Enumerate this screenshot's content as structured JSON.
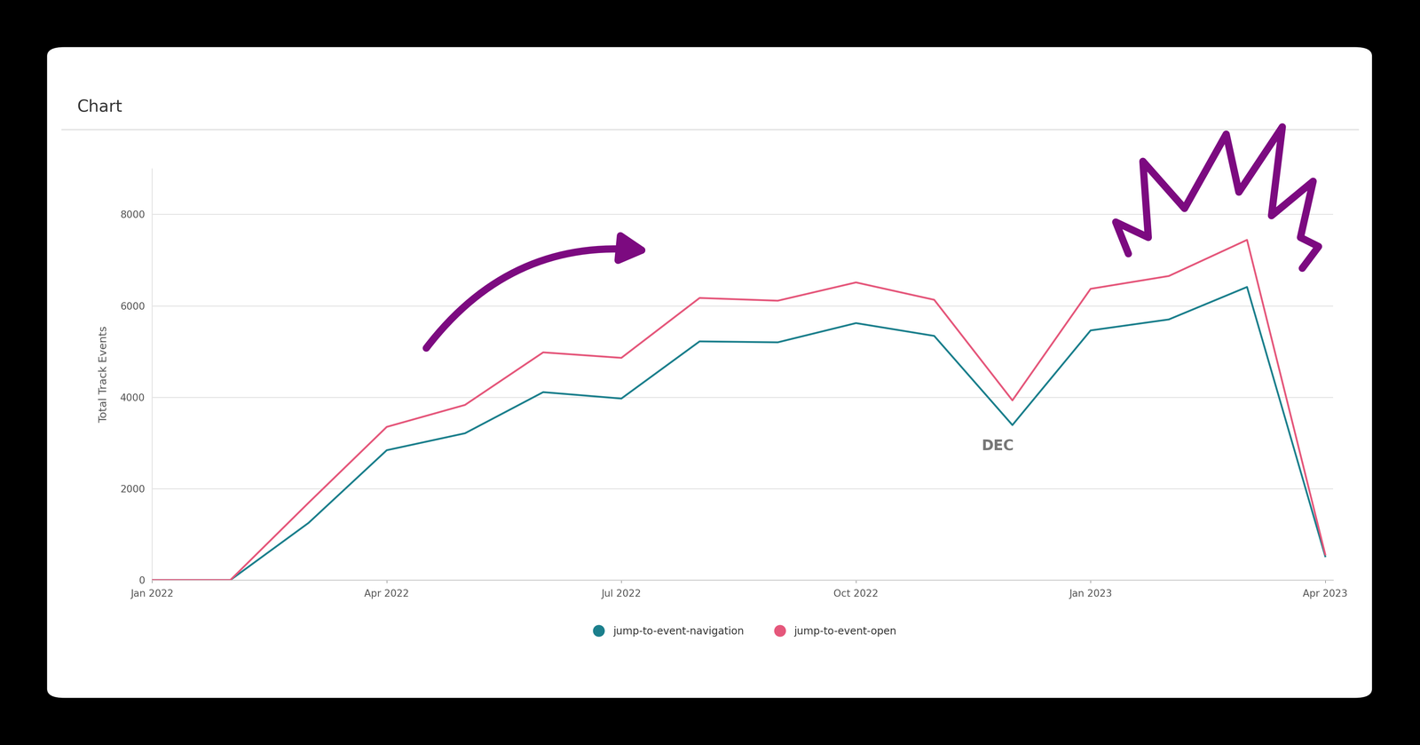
{
  "chart_data": {
    "type": "line",
    "title": "Chart",
    "y_label": "Total Track Events",
    "annotations": [
      "DEC"
    ],
    "categories": [
      "Jan 2022",
      null,
      null,
      "Apr 2022",
      null,
      null,
      "Jul 2022",
      null,
      null,
      "Oct 2022",
      null,
      null,
      "Jan 2023",
      null,
      null,
      "Apr 2023"
    ],
    "series": [
      {
        "name": "jump-to-event-navigation",
        "color": "#1b7f8c",
        "values": [
          0,
          0,
          1250,
          2840,
          3210,
          4110,
          3970,
          5220,
          5200,
          5620,
          5340,
          3390,
          5460,
          5700,
          6410,
          520
        ]
      },
      {
        "name": "jump-to-event-open",
        "color": "#e5577b",
        "values": [
          0,
          0,
          1690,
          3350,
          3830,
          4980,
          4860,
          6170,
          6110,
          6510,
          6130,
          3930,
          6370,
          6650,
          7440,
          560
        ]
      }
    ],
    "ylim": [
      0,
      9000
    ],
    "yticks": [
      0,
      2000,
      4000,
      6000,
      8000
    ],
    "grid": true,
    "legend": "bottom",
    "line_style": "solid"
  }
}
